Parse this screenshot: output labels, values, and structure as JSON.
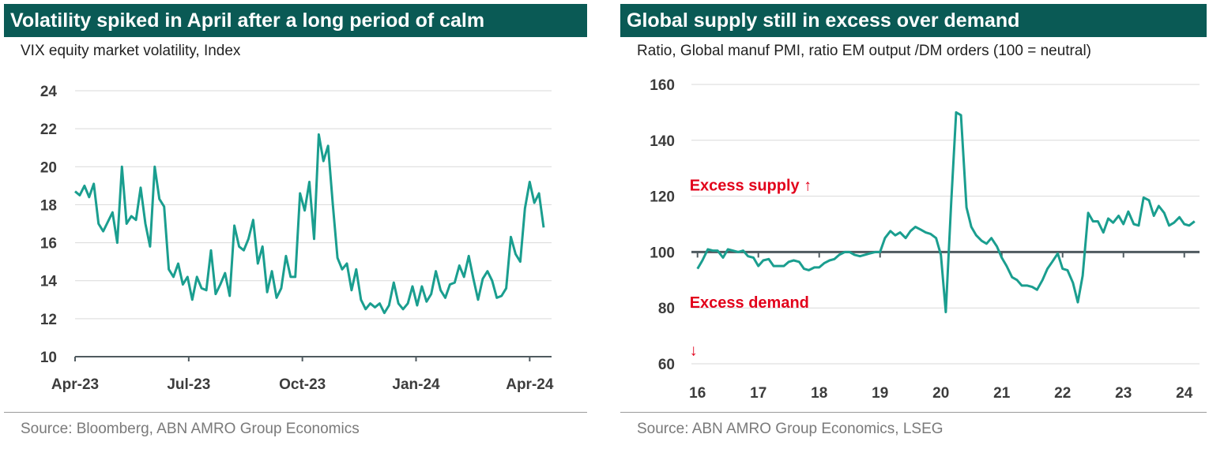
{
  "colors": {
    "title_bg": "#0a5a55",
    "line": "#1a9e8f",
    "grid": "#d9d9d9",
    "neutral_line": "#4f5a5f",
    "annotation": "#e2001a"
  },
  "chart_data": [
    {
      "type": "line",
      "title": "Volatility spiked in April after a long period of calm",
      "subtitle": "VIX equity market volatility, Index",
      "source": "Source: Bloomberg, ABN AMRO Group Economics",
      "x_tick_labels": [
        "Apr-23",
        "Jul-23",
        "Oct-23",
        "Jan-24",
        "Apr-24"
      ],
      "x_ticks_pos": [
        0,
        13,
        26,
        39,
        52
      ],
      "xlim": [
        0,
        54.5
      ],
      "ylim": [
        10,
        24
      ],
      "y_ticks": [
        10,
        12,
        14,
        16,
        18,
        20,
        22,
        24
      ],
      "grid": true,
      "series": [
        {
          "values": [
            18.7,
            18.5,
            19.0,
            18.4,
            19.1,
            17.0,
            16.6,
            17.1,
            17.6,
            16.0,
            20.0,
            17.0,
            17.4,
            17.2,
            18.9,
            17.0,
            15.8,
            20.0,
            18.3,
            17.9,
            14.6,
            14.2,
            14.9,
            13.8,
            14.2,
            13.0,
            14.2,
            13.6,
            13.5,
            15.6,
            13.3,
            13.8,
            14.4,
            13.2,
            16.9,
            15.8,
            15.6,
            16.2,
            17.2,
            14.9,
            15.8,
            13.4,
            14.5,
            13.1,
            13.6,
            15.3,
            14.2,
            14.2,
            18.6,
            17.7,
            19.2,
            16.2,
            21.7,
            20.3,
            21.1,
            18.0,
            15.2,
            14.6,
            14.9,
            13.5,
            14.6,
            13.0,
            12.5,
            12.8,
            12.6,
            12.8,
            12.3,
            12.7,
            13.9,
            12.8,
            12.5,
            12.8,
            13.7,
            12.7,
            13.7,
            12.9,
            13.3,
            14.5,
            13.5,
            13.1,
            13.8,
            13.9,
            14.8,
            14.2,
            15.3,
            14.1,
            13.0,
            14.1,
            14.5,
            14.0,
            13.1,
            13.2,
            13.6,
            16.3,
            15.4,
            15.0,
            17.8,
            19.2,
            18.1,
            18.6,
            16.8
          ]
        }
      ]
    },
    {
      "type": "line",
      "title": "Global supply still in excess over demand",
      "subtitle": "Ratio, Global manuf PMI, ratio EM output /DM orders (100 = neutral)",
      "source": "Source: ABN AMRO Group Economics, LSEG",
      "x_tick_labels": [
        "16",
        "17",
        "18",
        "19",
        "20",
        "21",
        "22",
        "23",
        "24"
      ],
      "x_ticks_pos": [
        2016,
        2017,
        2018,
        2019,
        2020,
        2021,
        2022,
        2023,
        2024
      ],
      "xlim": [
        2015.9,
        2024.25
      ],
      "ylim": [
        60,
        160
      ],
      "y_ticks": [
        60,
        80,
        100,
        120,
        140,
        160
      ],
      "grid": true,
      "reference_line": 100,
      "annotations": [
        {
          "text": "Excess supply ↑",
          "x": 2016.0,
          "y": 124
        },
        {
          "text": "Excess demand",
          "x": 2016.0,
          "y": 82
        },
        {
          "text": "↓",
          "x": 2016.0,
          "y": 65
        }
      ],
      "series": [
        {
          "x": [
            2016.0,
            2016.08,
            2016.17,
            2016.25,
            2016.33,
            2016.42,
            2016.5,
            2016.58,
            2016.67,
            2016.75,
            2016.83,
            2016.92,
            2017.0,
            2017.08,
            2017.17,
            2017.25,
            2017.33,
            2017.42,
            2017.5,
            2017.58,
            2017.67,
            2017.75,
            2017.83,
            2017.92,
            2018.0,
            2018.08,
            2018.17,
            2018.25,
            2018.33,
            2018.42,
            2018.5,
            2018.58,
            2018.67,
            2018.75,
            2018.83,
            2018.92,
            2019.0,
            2019.08,
            2019.17,
            2019.25,
            2019.33,
            2019.42,
            2019.5,
            2019.58,
            2019.67,
            2019.75,
            2019.83,
            2019.92,
            2020.0,
            2020.08,
            2020.17,
            2020.25,
            2020.33,
            2020.42,
            2020.5,
            2020.58,
            2020.67,
            2020.75,
            2020.83,
            2020.92,
            2021.0,
            2021.08,
            2021.17,
            2021.25,
            2021.33,
            2021.42,
            2021.5,
            2021.58,
            2021.67,
            2021.75,
            2021.83,
            2021.92,
            2022.0,
            2022.08,
            2022.17,
            2022.25,
            2022.33,
            2022.42,
            2022.5,
            2022.58,
            2022.67,
            2022.75,
            2022.83,
            2022.92,
            2023.0,
            2023.08,
            2023.17,
            2023.25,
            2023.33,
            2023.42,
            2023.5,
            2023.58,
            2023.67,
            2023.75,
            2023.83,
            2023.92,
            2024.0,
            2024.08,
            2024.17
          ],
          "values": [
            94,
            97,
            101,
            100.5,
            100.5,
            98,
            101,
            100.5,
            100,
            100.5,
            98.5,
            98,
            95,
            97,
            97.5,
            95,
            95,
            95,
            96.5,
            97,
            96.5,
            94,
            93.5,
            94.5,
            94.5,
            96,
            97,
            97.5,
            99,
            100,
            100,
            99,
            98.5,
            99,
            99.5,
            100,
            100,
            105,
            107.5,
            106,
            107,
            105,
            107.5,
            109,
            108,
            107,
            106.5,
            105,
            99,
            78.5,
            118,
            150,
            149,
            116,
            109,
            106,
            104,
            103,
            105,
            102,
            98,
            95,
            91,
            90,
            88,
            88,
            87.5,
            86.5,
            90,
            94,
            96.5,
            99.5,
            94,
            93.5,
            89,
            82,
            91.5,
            114,
            111,
            111,
            107,
            112,
            110.5,
            113,
            110,
            114.5,
            110,
            109.5,
            119.5,
            118.5,
            113,
            116.5,
            114,
            109.5,
            110.5,
            112.5,
            110,
            109.5,
            111
          ]
        }
      ]
    }
  ]
}
